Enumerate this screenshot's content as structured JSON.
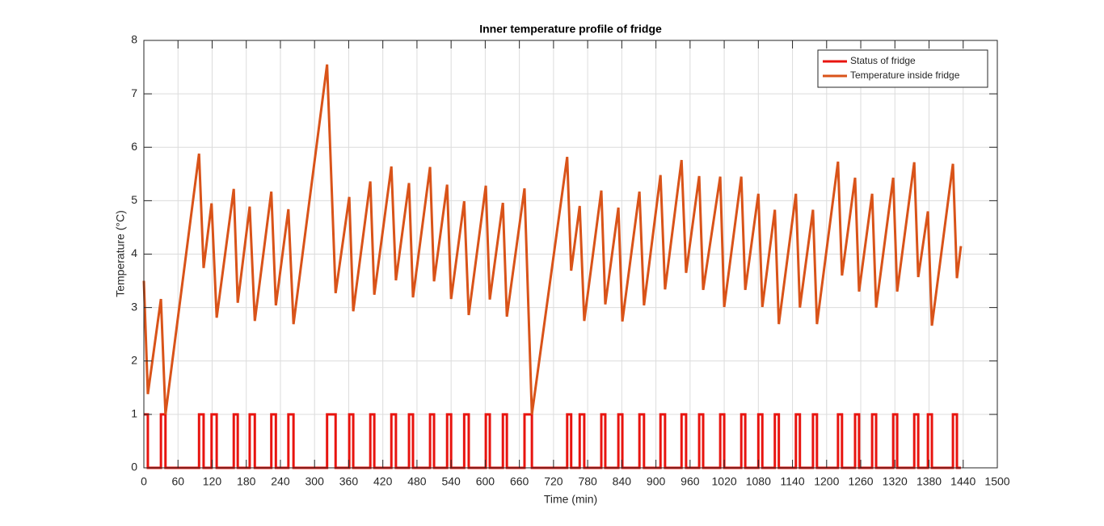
{
  "chart_data": {
    "type": "line",
    "title": "Inner temperature profile of fridge",
    "x_label": "Time (min)",
    "y_label": "Temperature (°C)",
    "xlim": [
      0,
      1500
    ],
    "ylim": [
      0,
      8
    ],
    "xticks": [
      0,
      60,
      120,
      180,
      240,
      300,
      360,
      420,
      480,
      540,
      600,
      660,
      720,
      780,
      840,
      900,
      960,
      1020,
      1080,
      1140,
      1200,
      1260,
      1320,
      1380,
      1440,
      1500
    ],
    "yticks": [
      0,
      1,
      2,
      3,
      4,
      5,
      6,
      7,
      8
    ],
    "grid": true,
    "legend": "top-right",
    "series": [
      {
        "name": "Status of fridge",
        "color": "#e8140f",
        "step": true,
        "x": [
          0,
          7,
          30,
          38,
          97,
          105,
          119,
          128,
          158,
          165,
          186,
          195,
          224,
          232,
          254,
          263,
          322,
          337,
          361,
          368,
          398,
          405,
          435,
          443,
          466,
          473,
          503,
          510,
          533,
          540,
          563,
          571,
          601,
          608,
          631,
          638,
          669,
          682,
          744,
          751,
          766,
          774,
          804,
          811,
          834,
          841,
          871,
          879,
          908,
          916,
          945,
          953,
          976,
          983,
          1013,
          1020,
          1050,
          1057,
          1080,
          1087,
          1109,
          1116,
          1146,
          1153,
          1176,
          1183,
          1220,
          1227,
          1250,
          1257,
          1280,
          1287,
          1317,
          1324,
          1354,
          1361,
          1378,
          1385,
          1422,
          1429,
          1436
        ],
        "values": [
          1,
          0,
          1,
          0,
          1,
          0,
          1,
          0,
          1,
          0,
          1,
          0,
          1,
          0,
          1,
          0,
          1,
          0,
          1,
          0,
          1,
          0,
          1,
          0,
          1,
          0,
          1,
          0,
          1,
          0,
          1,
          0,
          1,
          0,
          1,
          0,
          1,
          0,
          1,
          0,
          1,
          0,
          1,
          0,
          1,
          0,
          1,
          0,
          1,
          0,
          1,
          0,
          1,
          0,
          1,
          0,
          1,
          0,
          1,
          0,
          1,
          0,
          1,
          0,
          1,
          0,
          1,
          0,
          1,
          0,
          1,
          0,
          1,
          0,
          1,
          0,
          1,
          0,
          1,
          0,
          0
        ]
      },
      {
        "name": "Temperature inside fridge",
        "color": "#d95319",
        "x": [
          0,
          7,
          30,
          38,
          97,
          105,
          119,
          128,
          158,
          165,
          186,
          195,
          224,
          232,
          254,
          263,
          322,
          337,
          361,
          368,
          398,
          405,
          435,
          443,
          466,
          473,
          503,
          510,
          533,
          540,
          563,
          571,
          601,
          608,
          631,
          638,
          669,
          682,
          744,
          751,
          766,
          774,
          804,
          811,
          834,
          841,
          871,
          879,
          908,
          916,
          945,
          953,
          976,
          983,
          1013,
          1020,
          1050,
          1057,
          1080,
          1087,
          1109,
          1116,
          1146,
          1153,
          1176,
          1183,
          1220,
          1227,
          1250,
          1257,
          1280,
          1287,
          1317,
          1324,
          1354,
          1361,
          1378,
          1385,
          1422,
          1429,
          1436
        ],
        "values": [
          3.5,
          1.38,
          3.16,
          1.0,
          5.88,
          3.74,
          4.95,
          2.81,
          5.22,
          3.09,
          4.89,
          2.75,
          5.17,
          3.04,
          4.84,
          2.69,
          7.55,
          3.27,
          5.07,
          2.93,
          5.36,
          3.24,
          5.64,
          3.51,
          5.33,
          3.19,
          5.63,
          3.49,
          5.3,
          3.16,
          4.99,
          2.86,
          5.28,
          3.15,
          4.96,
          2.83,
          5.23,
          1.0,
          5.82,
          3.69,
          4.9,
          2.75,
          5.19,
          3.06,
          4.87,
          2.74,
          5.17,
          3.04,
          5.48,
          3.34,
          5.76,
          3.65,
          5.46,
          3.33,
          5.45,
          3.01,
          5.45,
          3.33,
          5.13,
          3.01,
          4.83,
          2.69,
          5.13,
          3.0,
          4.83,
          2.69,
          5.73,
          3.6,
          5.43,
          3.3,
          5.13,
          3.0,
          5.43,
          3.3,
          5.72,
          3.57,
          4.8,
          2.66,
          5.69,
          3.55,
          4.15
        ]
      }
    ]
  }
}
